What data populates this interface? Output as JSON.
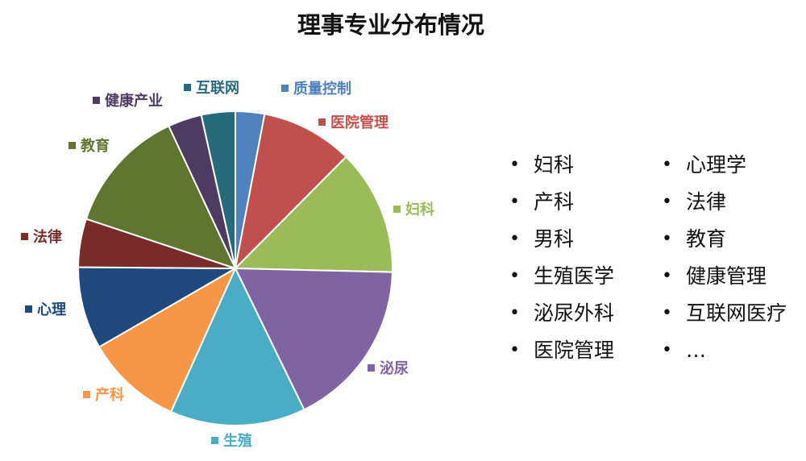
{
  "chart_data": {
    "type": "pie",
    "title": "理事专业分布情况",
    "slices": [
      {
        "label": "质量控制",
        "value": 3.0,
        "color": "#4f81bd"
      },
      {
        "label": "医院管理",
        "value": 9.5,
        "color": "#c0504d"
      },
      {
        "label": "妇科",
        "value": 13.0,
        "color": "#9bbb59"
      },
      {
        "label": "泌尿",
        "value": 17.5,
        "color": "#8064a2"
      },
      {
        "label": "生殖",
        "value": 14.0,
        "color": "#4bacc6"
      },
      {
        "label": "产科",
        "value": 10.0,
        "color": "#f79646"
      },
      {
        "label": "心理",
        "value": 8.5,
        "color": "#1f497d"
      },
      {
        "label": "法律",
        "value": 5.0,
        "color": "#772c2a"
      },
      {
        "label": "教育",
        "value": 13.0,
        "color": "#5f7530"
      },
      {
        "label": "健康产业",
        "value": 3.5,
        "color": "#4d3b62"
      },
      {
        "label": "互联网",
        "value": 3.5,
        "color": "#276a7c"
      }
    ]
  },
  "bullets": {
    "left": [
      "妇科",
      "产科",
      "男科",
      "生殖医学",
      "泌尿外科",
      "医院管理"
    ],
    "right": [
      "心理学",
      "法律",
      "教育",
      "健康管理",
      "互联网医疗",
      "…"
    ],
    "marker": "•"
  }
}
